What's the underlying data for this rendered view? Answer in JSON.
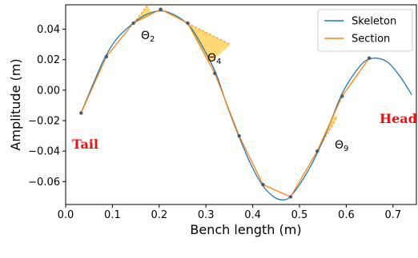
{
  "chart_data": {
    "type": "line",
    "xlabel": "Bench length (m)",
    "ylabel": "Amplitude (m)",
    "xlim": [
      0.0,
      0.75
    ],
    "ylim": [
      -0.075,
      0.056
    ],
    "xticks": [
      "0.0",
      "0.1",
      "0.2",
      "0.3",
      "0.4",
      "0.5",
      "0.6",
      "0.7"
    ],
    "yticks": [
      "0.04",
      "0.02",
      "0.00",
      "−0.02",
      "−0.04",
      "−0.06"
    ],
    "xtick_values": [
      0.0,
      0.1,
      0.2,
      0.3,
      0.4,
      0.5,
      0.6,
      0.7
    ],
    "ytick_values": [
      0.04,
      0.02,
      0.0,
      -0.02,
      -0.04,
      -0.06
    ],
    "legend_position": "top-right",
    "grid": false,
    "series": [
      {
        "name": "Skeleton",
        "color": "#1f77b4",
        "x": [
          0.033,
          0.06,
          0.085,
          0.11,
          0.145,
          0.175,
          0.205,
          0.235,
          0.265,
          0.29,
          0.32,
          0.345,
          0.37,
          0.395,
          0.42,
          0.445,
          0.465,
          0.48,
          0.5,
          0.52,
          0.54,
          0.565,
          0.59,
          0.615,
          0.64,
          0.665,
          0.69,
          0.715,
          0.74
        ],
        "y": [
          -0.015,
          0.005,
          0.022,
          0.034,
          0.044,
          0.05,
          0.052,
          0.049,
          0.042,
          0.03,
          0.012,
          -0.01,
          -0.03,
          -0.048,
          -0.062,
          -0.07,
          -0.072,
          -0.07,
          -0.062,
          -0.052,
          -0.04,
          -0.022,
          -0.003,
          0.01,
          0.019,
          0.021,
          0.018,
          0.009,
          -0.003
        ]
      },
      {
        "name": "Section",
        "color": "#ff7f0e",
        "x": [
          0.033,
          0.087,
          0.145,
          0.203,
          0.261,
          0.319,
          0.371,
          0.422,
          0.481,
          0.538,
          0.591,
          0.649
        ],
        "y": [
          -0.015,
          0.022,
          0.044,
          0.053,
          0.044,
          0.011,
          -0.03,
          -0.062,
          -0.07,
          -0.04,
          -0.004,
          0.021
        ]
      }
    ],
    "annotations": {
      "tail": {
        "text": "Tail",
        "color": "#ee1111"
      },
      "head": {
        "text": "Head",
        "color": "#ee1111"
      },
      "thetas": [
        {
          "symbol": "Θ",
          "subscript": "2"
        },
        {
          "symbol": "Θ",
          "subscript": "4"
        },
        {
          "symbol": "Θ",
          "subscript": "9"
        }
      ]
    },
    "wedge_color": "#ffcc44"
  }
}
